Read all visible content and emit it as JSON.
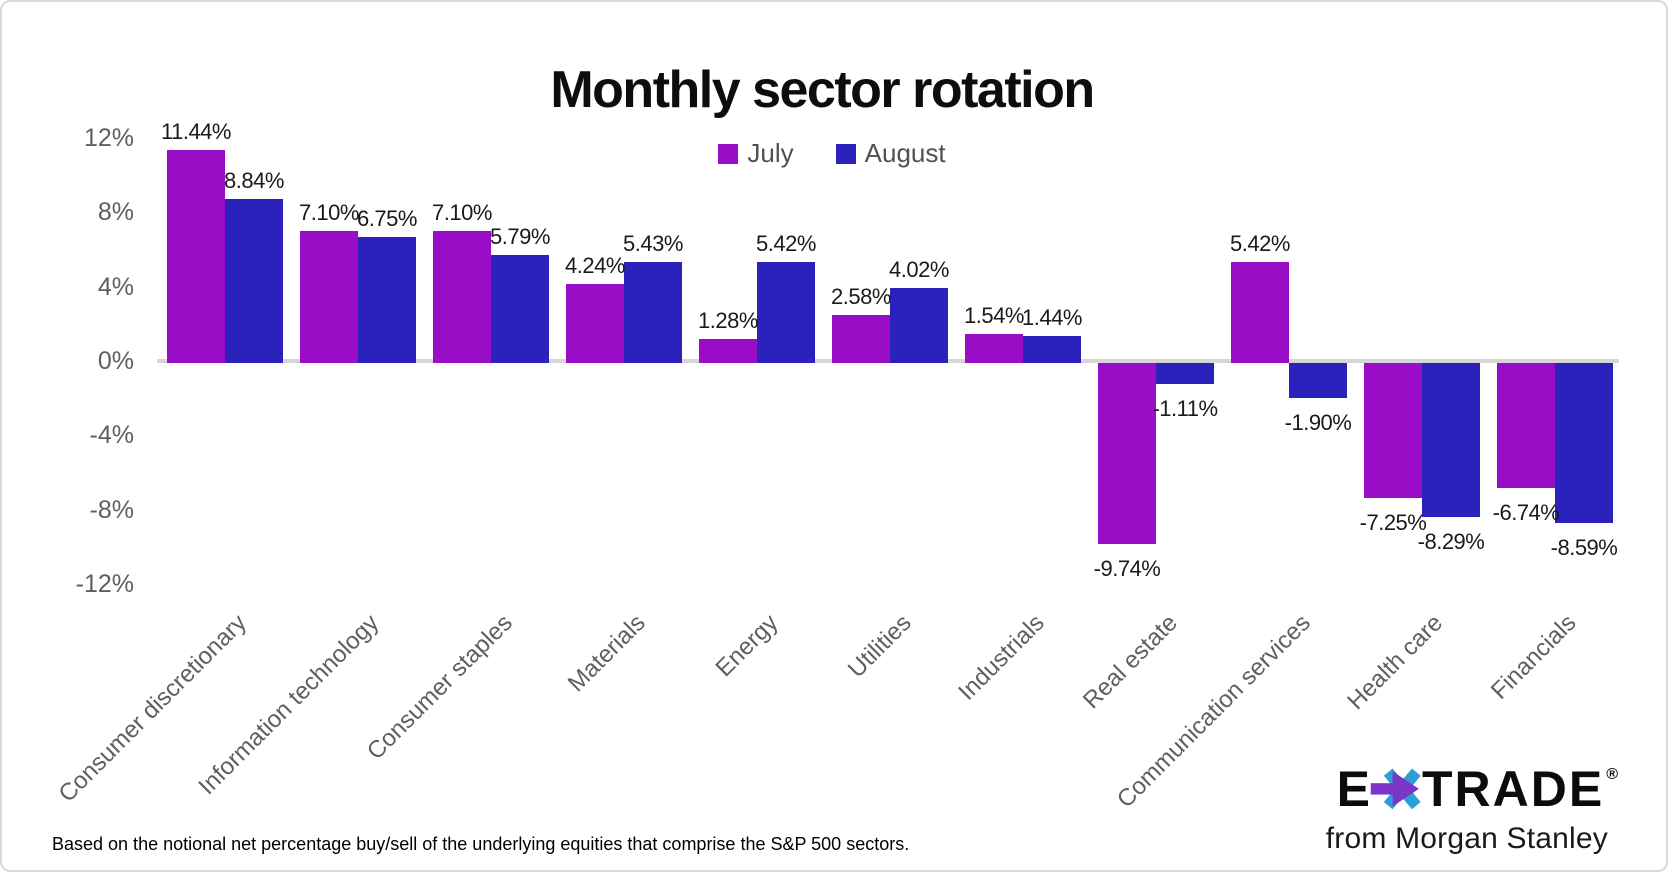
{
  "title": "Monthly sector rotation",
  "footnote": "Based on the notional net percentage buy/sell of the underlying equities that comprise the S&P 500 sectors.",
  "logo": {
    "e": "E",
    "trade": "TRADE",
    "reg": "®",
    "tagline": "from Morgan Stanley"
  },
  "colors": {
    "july": "#990DC6",
    "august": "#2B22BE",
    "zero_line": "#d6d6d6",
    "tick_text": "#5f5f5f",
    "value_text": "#1a1a1a",
    "asterisk_purple": "#7B35C9",
    "asterisk_cyan": "#2D9FD6"
  },
  "chart_data": {
    "type": "bar",
    "title": "Monthly sector rotation",
    "xlabel": "",
    "ylabel": "",
    "ylim": [
      -12,
      12
    ],
    "grid": false,
    "legend_position": "top-center",
    "y_ticks": [
      {
        "value": 12,
        "label": "12%"
      },
      {
        "value": 8,
        "label": "8%"
      },
      {
        "value": 4,
        "label": "4%"
      },
      {
        "value": 0,
        "label": "0%"
      },
      {
        "value": -4,
        "label": "-4%"
      },
      {
        "value": -8,
        "label": "-8%"
      },
      {
        "value": -12,
        "label": "-12%"
      }
    ],
    "categories": [
      "Consumer discretionary",
      "Information technology",
      "Consumer staples",
      "Materials",
      "Energy",
      "Utilities",
      "Industrials",
      "Real estate",
      "Communication services",
      "Health care",
      "Financials"
    ],
    "series": [
      {
        "name": "July",
        "color": "#990DC6",
        "values": [
          11.44,
          7.1,
          7.1,
          4.24,
          1.28,
          2.58,
          1.54,
          -9.74,
          5.42,
          -7.25,
          -6.74
        ]
      },
      {
        "name": "August",
        "color": "#2B22BE",
        "values": [
          8.84,
          6.75,
          5.79,
          5.43,
          5.42,
          4.02,
          1.44,
          -1.11,
          -1.9,
          -8.29,
          -8.59
        ]
      }
    ],
    "value_label_format": "two-decimal-percent"
  }
}
